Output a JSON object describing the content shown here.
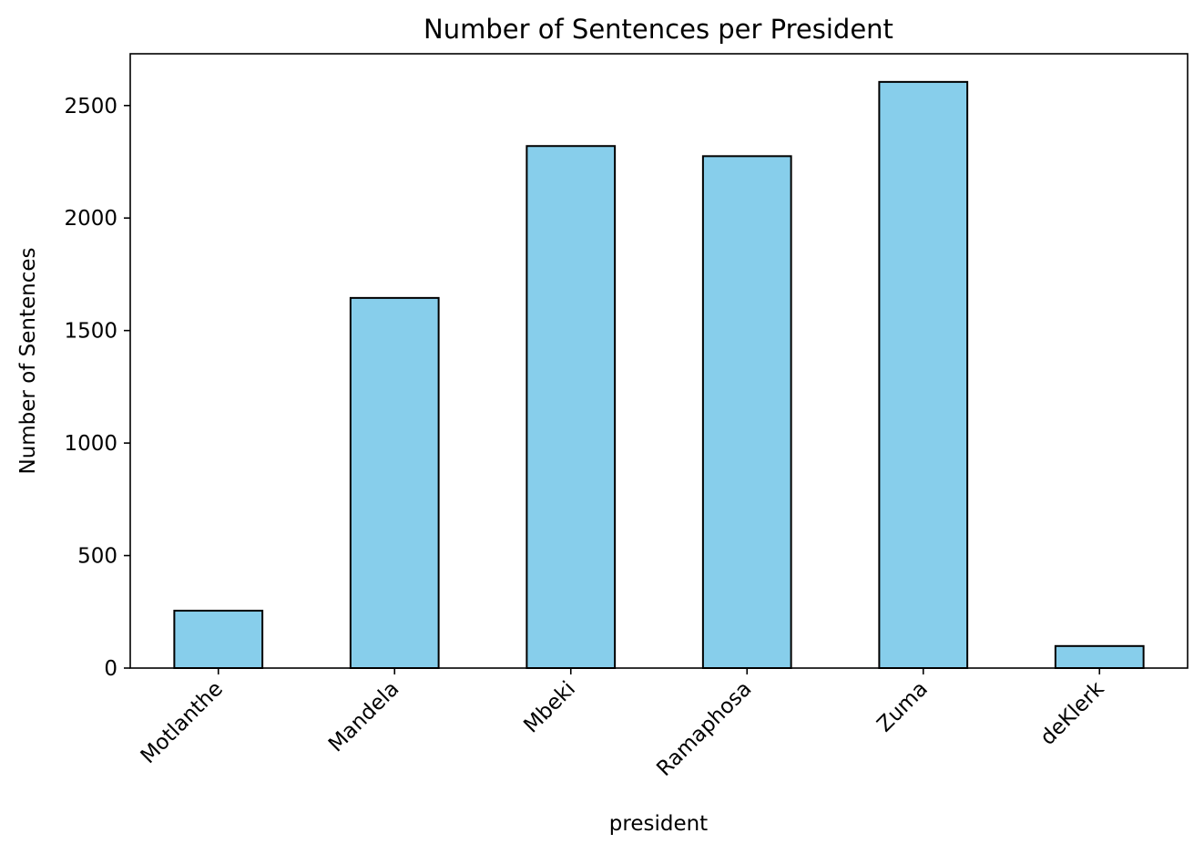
{
  "chart_data": {
    "type": "bar",
    "title": "Number of Sentences per President",
    "xlabel": "president",
    "ylabel": "Number of Sentences",
    "categories": [
      "Motlanthe",
      "Mandela",
      "Mbeki",
      "Ramaphosa",
      "Zuma",
      "deKlerk"
    ],
    "values": [
      255,
      1645,
      2320,
      2275,
      2605,
      98
    ],
    "ylim": [
      0,
      2730
    ],
    "yticks": [
      0,
      500,
      1000,
      1500,
      2000,
      2500
    ],
    "ytick_labels": [
      "0",
      "500",
      "1000",
      "1500",
      "2000",
      "2500"
    ],
    "bar_color": "#87CEEB",
    "edge_color": "#000000",
    "grid": false,
    "legend": "none",
    "xtick_rotation_deg": 45
  }
}
